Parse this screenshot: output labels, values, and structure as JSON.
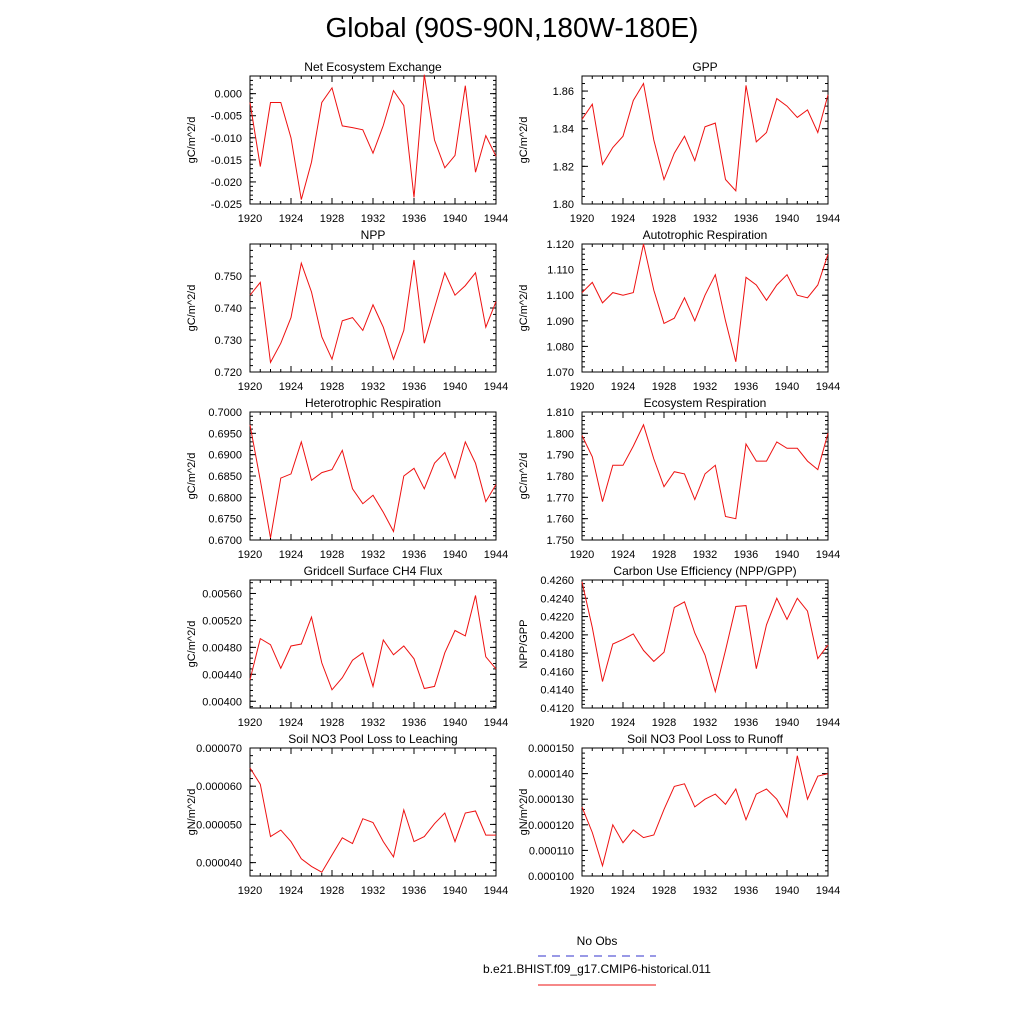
{
  "title": "Global (90S-90N,180W-180E)",
  "colors": {
    "model_line": "#ee1111",
    "obs_line": "#3333cc",
    "axis": "#000000"
  },
  "legend": {
    "items": [
      {
        "label": "No Obs",
        "style": "dashed",
        "color": "#3333cc"
      },
      {
        "label": "b.e21.BHIST.f09_g17.CMIP6-historical.011",
        "style": "solid",
        "color": "#ee1111"
      }
    ]
  },
  "chart_data": [
    {
      "type": "line",
      "title": "Net Ecosystem Exchange",
      "ylabel": "gC/m^2/d",
      "xlim": [
        1920,
        1944
      ],
      "ylim": [
        -0.025,
        0.004
      ],
      "xticks": [
        1920,
        1924,
        1928,
        1932,
        1936,
        1940,
        1944
      ],
      "yticks": [
        -0.025,
        -0.02,
        -0.015,
        -0.01,
        -0.005,
        0.0
      ],
      "ytick_labels": [
        "-0.025",
        "-0.020",
        "-0.015",
        "-0.010",
        "-0.005",
        "0.000"
      ],
      "x": [
        1920,
        1921,
        1922,
        1923,
        1924,
        1925,
        1926,
        1927,
        1928,
        1929,
        1930,
        1931,
        1932,
        1933,
        1934,
        1935,
        1936,
        1937,
        1938,
        1939,
        1940,
        1941,
        1942,
        1943,
        1944
      ],
      "series": [
        {
          "values": [
            -0.002,
            -0.0165,
            -0.002,
            -0.002,
            -0.01,
            -0.024,
            -0.0155,
            -0.002,
            0.0013,
            -0.0073,
            -0.0077,
            -0.0082,
            -0.0135,
            -0.0072,
            0.0007,
            -0.0027,
            -0.0235,
            0.0043,
            -0.0105,
            -0.0168,
            -0.014,
            0.0018,
            -0.0178,
            -0.0095,
            -0.0142
          ]
        }
      ]
    },
    {
      "type": "line",
      "title": "GPP",
      "ylabel": "gC/m^2/d",
      "xlim": [
        1920,
        1944
      ],
      "ylim": [
        1.8,
        1.868
      ],
      "xticks": [
        1920,
        1924,
        1928,
        1932,
        1936,
        1940,
        1944
      ],
      "yticks": [
        1.8,
        1.82,
        1.84,
        1.86
      ],
      "ytick_labels": [
        "1.80",
        "1.82",
        "1.84",
        "1.86"
      ],
      "x": [
        1920,
        1921,
        1922,
        1923,
        1924,
        1925,
        1926,
        1927,
        1928,
        1929,
        1930,
        1931,
        1932,
        1933,
        1934,
        1935,
        1936,
        1937,
        1938,
        1939,
        1940,
        1941,
        1942,
        1943,
        1944
      ],
      "series": [
        {
          "values": [
            1.845,
            1.853,
            1.821,
            1.83,
            1.836,
            1.855,
            1.864,
            1.834,
            1.813,
            1.827,
            1.836,
            1.823,
            1.841,
            1.843,
            1.813,
            1.807,
            1.863,
            1.833,
            1.838,
            1.856,
            1.852,
            1.846,
            1.85,
            1.838,
            1.858
          ]
        }
      ]
    },
    {
      "type": "line",
      "title": "NPP",
      "ylabel": "gC/m^2/d",
      "xlim": [
        1920,
        1944
      ],
      "ylim": [
        0.72,
        0.76
      ],
      "xticks": [
        1920,
        1924,
        1928,
        1932,
        1936,
        1940,
        1944
      ],
      "yticks": [
        0.72,
        0.73,
        0.74,
        0.75
      ],
      "ytick_labels": [
        "0.720",
        "0.730",
        "0.740",
        "0.750"
      ],
      "x": [
        1920,
        1921,
        1922,
        1923,
        1924,
        1925,
        1926,
        1927,
        1928,
        1929,
        1930,
        1931,
        1932,
        1933,
        1934,
        1935,
        1936,
        1937,
        1938,
        1939,
        1940,
        1941,
        1942,
        1943,
        1944
      ],
      "series": [
        {
          "values": [
            0.744,
            0.748,
            0.723,
            0.729,
            0.737,
            0.754,
            0.745,
            0.731,
            0.724,
            0.736,
            0.737,
            0.733,
            0.741,
            0.734,
            0.724,
            0.733,
            0.755,
            0.729,
            0.74,
            0.751,
            0.744,
            0.747,
            0.751,
            0.734,
            0.742
          ]
        }
      ]
    },
    {
      "type": "line",
      "title": "Autotrophic Respiration",
      "ylabel": "gC/m^2/d",
      "xlim": [
        1920,
        1944
      ],
      "ylim": [
        1.07,
        1.12
      ],
      "xticks": [
        1920,
        1924,
        1928,
        1932,
        1936,
        1940,
        1944
      ],
      "yticks": [
        1.07,
        1.08,
        1.09,
        1.1,
        1.11,
        1.12
      ],
      "ytick_labels": [
        "1.070",
        "1.080",
        "1.090",
        "1.100",
        "1.110",
        "1.120"
      ],
      "x": [
        1920,
        1921,
        1922,
        1923,
        1924,
        1925,
        1926,
        1927,
        1928,
        1929,
        1930,
        1931,
        1932,
        1933,
        1934,
        1935,
        1936,
        1937,
        1938,
        1939,
        1940,
        1941,
        1942,
        1943,
        1944
      ],
      "series": [
        {
          "values": [
            1.101,
            1.105,
            1.097,
            1.101,
            1.1,
            1.101,
            1.12,
            1.102,
            1.089,
            1.091,
            1.099,
            1.09,
            1.1,
            1.108,
            1.09,
            1.074,
            1.107,
            1.104,
            1.098,
            1.104,
            1.108,
            1.1,
            1.099,
            1.104,
            1.116
          ]
        }
      ]
    },
    {
      "type": "line",
      "title": "Heterotrophic Respiration",
      "ylabel": "gC/m^2/d",
      "xlim": [
        1920,
        1944
      ],
      "ylim": [
        0.67,
        0.7
      ],
      "xticks": [
        1920,
        1924,
        1928,
        1932,
        1936,
        1940,
        1944
      ],
      "yticks": [
        0.67,
        0.675,
        0.68,
        0.685,
        0.69,
        0.695,
        0.7
      ],
      "ytick_labels": [
        "0.6700",
        "0.6750",
        "0.6800",
        "0.6850",
        "0.6900",
        "0.6950",
        "0.7000"
      ],
      "x": [
        1920,
        1921,
        1922,
        1923,
        1924,
        1925,
        1926,
        1927,
        1928,
        1929,
        1930,
        1931,
        1932,
        1933,
        1934,
        1935,
        1936,
        1937,
        1938,
        1939,
        1940,
        1941,
        1942,
        1943,
        1944
      ],
      "series": [
        {
          "values": [
            0.697,
            0.684,
            0.6705,
            0.6845,
            0.6855,
            0.693,
            0.684,
            0.6858,
            0.6865,
            0.691,
            0.682,
            0.6785,
            0.6805,
            0.6765,
            0.672,
            0.685,
            0.6868,
            0.682,
            0.688,
            0.6905,
            0.6845,
            0.693,
            0.688,
            0.679,
            0.683
          ]
        }
      ]
    },
    {
      "type": "line",
      "title": "Ecosystem Respiration",
      "ylabel": "gC/m^2/d",
      "xlim": [
        1920,
        1944
      ],
      "ylim": [
        1.75,
        1.81
      ],
      "xticks": [
        1920,
        1924,
        1928,
        1932,
        1936,
        1940,
        1944
      ],
      "yticks": [
        1.75,
        1.76,
        1.77,
        1.78,
        1.79,
        1.8,
        1.81
      ],
      "ytick_labels": [
        "1.750",
        "1.760",
        "1.770",
        "1.780",
        "1.790",
        "1.800",
        "1.810"
      ],
      "x": [
        1920,
        1921,
        1922,
        1923,
        1924,
        1925,
        1926,
        1927,
        1928,
        1929,
        1930,
        1931,
        1932,
        1933,
        1934,
        1935,
        1936,
        1937,
        1938,
        1939,
        1940,
        1941,
        1942,
        1943,
        1944
      ],
      "series": [
        {
          "values": [
            1.799,
            1.789,
            1.768,
            1.785,
            1.785,
            1.794,
            1.804,
            1.788,
            1.775,
            1.782,
            1.781,
            1.769,
            1.781,
            1.785,
            1.761,
            1.76,
            1.795,
            1.787,
            1.787,
            1.796,
            1.793,
            1.793,
            1.787,
            1.783,
            1.8
          ]
        }
      ]
    },
    {
      "type": "line",
      "title": "Gridcell Surface CH4 Flux",
      "ylabel": "gC/m^2/d",
      "xlim": [
        1920,
        1944
      ],
      "ylim": [
        0.0039,
        0.0058
      ],
      "xticks": [
        1920,
        1924,
        1928,
        1932,
        1936,
        1940,
        1944
      ],
      "yticks": [
        0.004,
        0.0044,
        0.0048,
        0.0052,
        0.0056
      ],
      "ytick_labels": [
        "0.00400",
        "0.00440",
        "0.00480",
        "0.00520",
        "0.00560"
      ],
      "x": [
        1920,
        1921,
        1922,
        1923,
        1924,
        1925,
        1926,
        1927,
        1928,
        1929,
        1930,
        1931,
        1932,
        1933,
        1934,
        1935,
        1936,
        1937,
        1938,
        1939,
        1940,
        1941,
        1942,
        1943,
        1944
      ],
      "series": [
        {
          "values": [
            0.00432,
            0.00493,
            0.00484,
            0.00449,
            0.00482,
            0.00485,
            0.00525,
            0.00457,
            0.00417,
            0.00435,
            0.00461,
            0.00472,
            0.00422,
            0.00491,
            0.00469,
            0.00482,
            0.00463,
            0.00419,
            0.00422,
            0.00472,
            0.00505,
            0.00497,
            0.00557,
            0.00466,
            0.00448
          ]
        }
      ]
    },
    {
      "type": "line",
      "title": "Carbon Use Efficiency (NPP/GPP)",
      "ylabel": "NPP/GPP",
      "xlim": [
        1920,
        1944
      ],
      "ylim": [
        0.412,
        0.426
      ],
      "xticks": [
        1920,
        1924,
        1928,
        1932,
        1936,
        1940,
        1944
      ],
      "yticks": [
        0.412,
        0.414,
        0.416,
        0.418,
        0.42,
        0.422,
        0.424,
        0.426
      ],
      "ytick_labels": [
        "0.4120",
        "0.4140",
        "0.4160",
        "0.4180",
        "0.4200",
        "0.4220",
        "0.4240",
        "0.4260"
      ],
      "x": [
        1920,
        1921,
        1922,
        1923,
        1924,
        1925,
        1926,
        1927,
        1928,
        1929,
        1930,
        1931,
        1932,
        1933,
        1934,
        1935,
        1936,
        1937,
        1938,
        1939,
        1940,
        1941,
        1942,
        1943,
        1944
      ],
      "series": [
        {
          "values": [
            0.4258,
            0.4208,
            0.4149,
            0.419,
            0.4195,
            0.4201,
            0.4183,
            0.4171,
            0.4181,
            0.423,
            0.4236,
            0.4202,
            0.4178,
            0.4138,
            0.4183,
            0.4231,
            0.4232,
            0.4163,
            0.4211,
            0.424,
            0.4217,
            0.424,
            0.4226,
            0.4174,
            0.4189
          ]
        }
      ]
    },
    {
      "type": "line",
      "title": "Soil NO3 Pool Loss to Leaching",
      "ylabel": "gN/m^2/d",
      "xlim": [
        1920,
        1944
      ],
      "ylim": [
        3.65e-05,
        7e-05
      ],
      "xticks": [
        1920,
        1924,
        1928,
        1932,
        1936,
        1940,
        1944
      ],
      "yticks": [
        4e-05,
        5e-05,
        6e-05,
        7e-05
      ],
      "ytick_labels": [
        "0.000040",
        "0.000050",
        "0.000060",
        "0.000070"
      ],
      "x": [
        1920,
        1921,
        1922,
        1923,
        1924,
        1925,
        1926,
        1927,
        1928,
        1929,
        1930,
        1931,
        1932,
        1933,
        1934,
        1935,
        1936,
        1937,
        1938,
        1939,
        1940,
        1941,
        1942,
        1943,
        1944
      ],
      "series": [
        {
          "values": [
            6.48e-05,
            6.05e-05,
            4.68e-05,
            4.85e-05,
            4.55e-05,
            4.1e-05,
            3.9e-05,
            3.75e-05,
            4.2e-05,
            4.65e-05,
            4.5e-05,
            5.15e-05,
            5.05e-05,
            4.55e-05,
            4.15e-05,
            5.38e-05,
            4.55e-05,
            4.68e-05,
            5.02e-05,
            5.3e-05,
            4.55e-05,
            5.3e-05,
            5.35e-05,
            4.72e-05,
            4.72e-05
          ]
        }
      ]
    },
    {
      "type": "line",
      "title": "Soil NO3 Pool Loss to Runoff",
      "ylabel": "gN/m^2/d",
      "xlim": [
        1920,
        1944
      ],
      "ylim": [
        0.0001,
        0.00015
      ],
      "xticks": [
        1920,
        1924,
        1928,
        1932,
        1936,
        1940,
        1944
      ],
      "yticks": [
        0.0001,
        0.00011,
        0.00012,
        0.00013,
        0.00014,
        0.00015
      ],
      "ytick_labels": [
        "0.000100",
        "0.000110",
        "0.000120",
        "0.000130",
        "0.000140",
        "0.000150"
      ],
      "x": [
        1920,
        1921,
        1922,
        1923,
        1924,
        1925,
        1926,
        1927,
        1928,
        1929,
        1930,
        1931,
        1932,
        1933,
        1934,
        1935,
        1936,
        1937,
        1938,
        1939,
        1940,
        1941,
        1942,
        1943,
        1944
      ],
      "series": [
        {
          "values": [
            0.000127,
            0.000117,
            0.000104,
            0.00012,
            0.000113,
            0.000118,
            0.000115,
            0.000116,
            0.000126,
            0.000135,
            0.000136,
            0.000127,
            0.00013,
            0.000132,
            0.000128,
            0.000134,
            0.000122,
            0.000132,
            0.000134,
            0.00013,
            0.000123,
            0.000147,
            0.00013,
            0.000139,
            0.00014
          ]
        }
      ]
    }
  ]
}
